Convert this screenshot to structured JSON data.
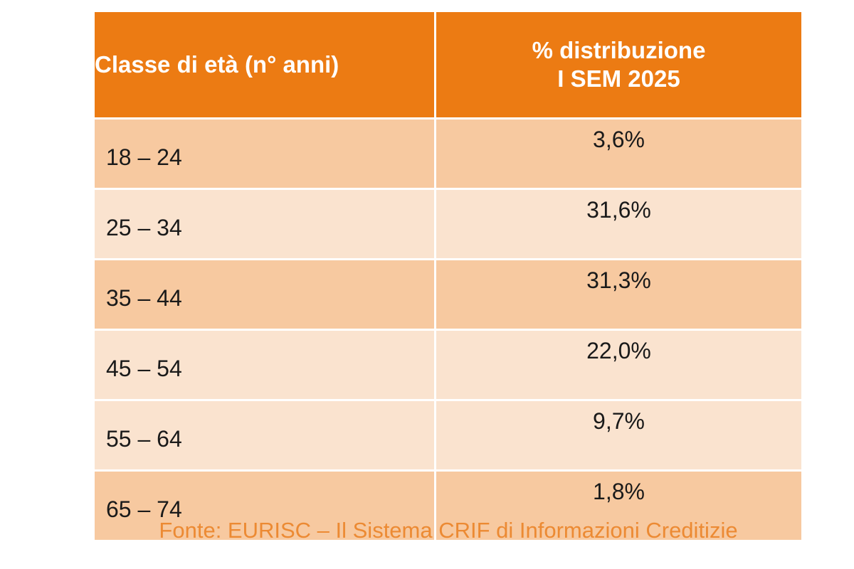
{
  "chart_data": {
    "type": "table",
    "columns": [
      "Classe di età (n° anni)",
      "% distribuzione",
      "I SEM 2025"
    ],
    "rows": [
      {
        "age": "18 – 24",
        "pct": "3,6%"
      },
      {
        "age": "25 – 34",
        "pct": "31,6%"
      },
      {
        "age": "35 – 44",
        "pct": "31,3%"
      },
      {
        "age": "45 – 54",
        "pct": "22,0%"
      },
      {
        "age": "55 – 64",
        "pct": "9,7%"
      },
      {
        "age": "65 – 74",
        "pct": "1,8%"
      }
    ],
    "source": "Fonte: EURISC – Il Sistema CRIF di Informazioni Creditizie"
  },
  "colors": {
    "header": "#ec7b13",
    "row_dark": "#f7c9a0",
    "row_light": "#fae3cf",
    "source_text": "#ec8a33"
  }
}
